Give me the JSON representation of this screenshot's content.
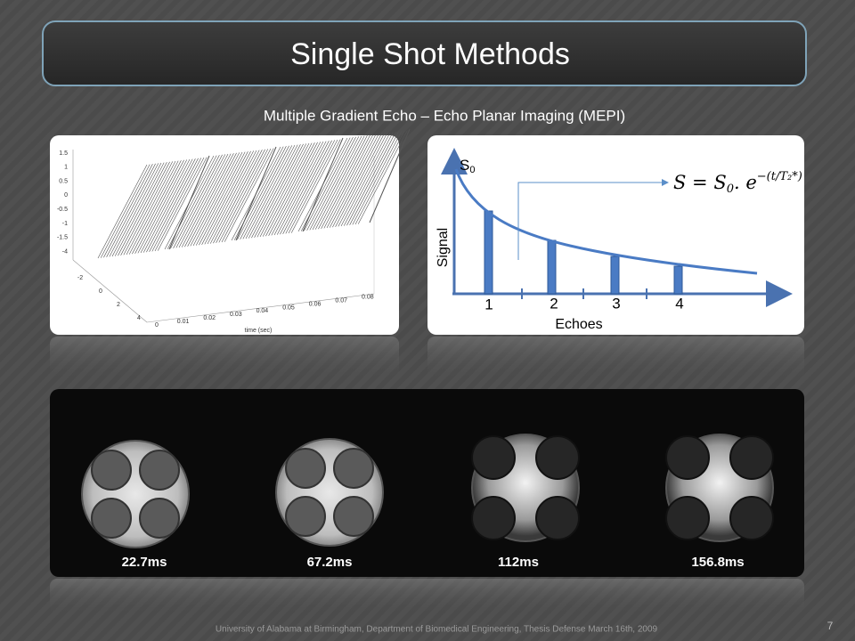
{
  "header": {
    "title": "Single Shot Methods",
    "subtitle": "Multiple Gradient Echo – Echo Planar Imaging (MEPI)"
  },
  "plot": {
    "amplitude_ticks": [
      "1.5",
      "1",
      "0.5",
      "0",
      "-0.5",
      "-1",
      "-1.5",
      "-4"
    ],
    "depth_ticks": [
      "-2",
      "0",
      "2",
      "4"
    ],
    "time_ticks": [
      "0",
      "0.01",
      "0.02",
      "0.03",
      "0.04",
      "0.05",
      "0.06",
      "0.07",
      "0.08"
    ],
    "time_label": "time (sec)"
  },
  "decay": {
    "s0_symbol": "S",
    "s0_subscript": "0",
    "y_label": "Signal",
    "x_label": "Echoes",
    "echoes": [
      "1",
      "2",
      "3",
      "4"
    ],
    "formula": {
      "lhs": "S = S",
      "sub": "0",
      "rest": ". e",
      "exponent": "−(t/T₂*)"
    }
  },
  "images": {
    "labels": [
      "22.7ms",
      "67.2ms",
      "112ms",
      "156.8ms"
    ]
  },
  "footer": {
    "text": "University of Alabama at Birmingham, Department of Biomedical Engineering, Thesis Defense March 16th, 2009",
    "page": "7"
  }
}
